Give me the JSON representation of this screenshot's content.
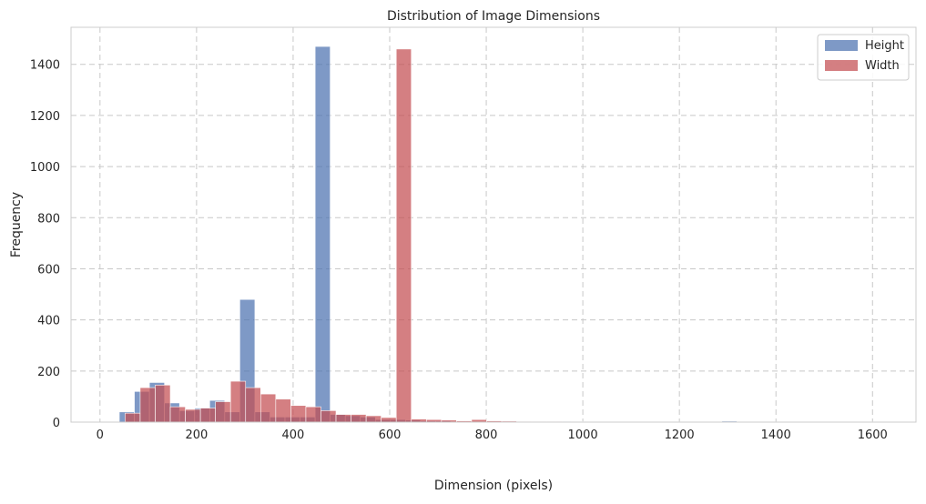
{
  "chart_data": {
    "type": "histogram",
    "title": "Distribution of Image Dimensions",
    "xlabel": "Dimension (pixels)",
    "ylabel": "Frequency",
    "xlim": [
      -60,
      1690
    ],
    "ylim": [
      0,
      1545
    ],
    "xticks": [
      0,
      200,
      400,
      600,
      800,
      1000,
      1200,
      1400,
      1600
    ],
    "yticks": [
      0,
      200,
      400,
      600,
      800,
      1000,
      1200,
      1400
    ],
    "grid": true,
    "legend_position": "top-right",
    "series": [
      {
        "name": "Height",
        "color": "#4c72b0",
        "opacity": 0.72,
        "bin_start": 40,
        "bin_width": 31.2,
        "values": [
          40,
          120,
          155,
          75,
          45,
          55,
          85,
          40,
          480,
          40,
          20,
          20,
          20,
          1470,
          30,
          25,
          20,
          10,
          10,
          8,
          5,
          5,
          3,
          3,
          3,
          2,
          2,
          2,
          2,
          3,
          2,
          1,
          1,
          1,
          1,
          1,
          1,
          1,
          1,
          1,
          4,
          1,
          1,
          1,
          1,
          1,
          1,
          1,
          1,
          1,
          1,
          1
        ]
      },
      {
        "name": "Width",
        "color": "#c44e52",
        "opacity": 0.72,
        "bin_start": 52,
        "bin_width": 31.2,
        "values": [
          35,
          135,
          145,
          60,
          50,
          55,
          80,
          160,
          135,
          110,
          90,
          65,
          60,
          45,
          30,
          30,
          25,
          18,
          1460,
          12,
          10,
          8,
          5,
          10,
          5,
          4,
          3,
          2,
          2,
          1,
          1,
          1,
          1,
          1,
          1,
          1,
          1,
          1,
          1,
          1,
          1,
          1,
          1,
          1,
          1,
          1,
          1,
          1,
          1,
          1
        ]
      }
    ]
  }
}
